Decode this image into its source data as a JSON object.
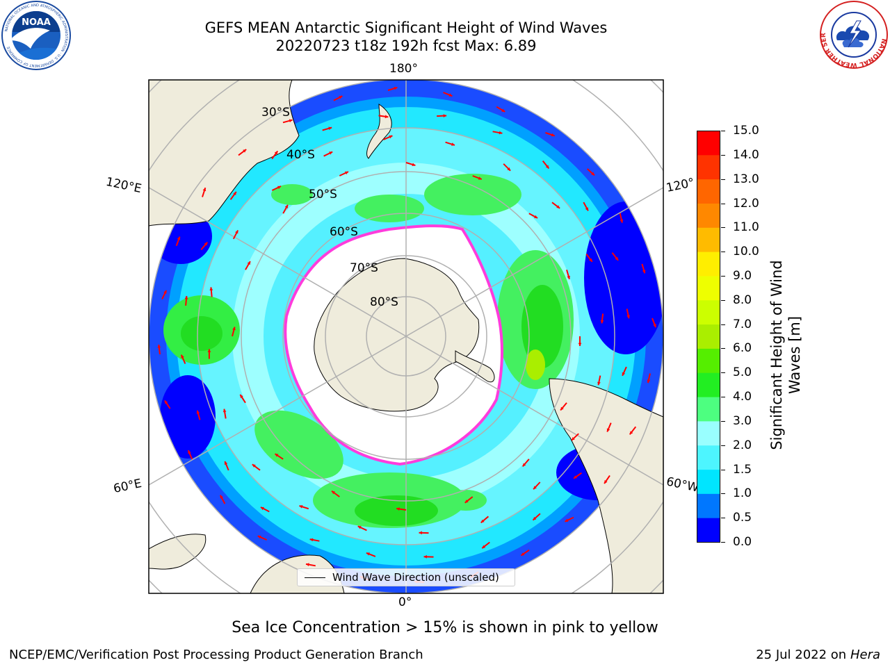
{
  "title": {
    "line1": "GEFS MEAN Antarctic Significant Height of Wind Waves",
    "line2": "20220723 t18z 192h fcst   Max: 6.89"
  },
  "map": {
    "projection": "south-polar-stereographic",
    "longitude_labels": {
      "top": "180°",
      "bottom": "0°",
      "left_upper": "120°E",
      "left_lower": "60°E",
      "right_upper": "120°",
      "right_lower": "60°W"
    },
    "latitude_labels": [
      "30°S",
      "40°S",
      "50°S",
      "60°S",
      "70°S",
      "80°S"
    ],
    "legend_label": "Wind Wave Direction (unscaled)",
    "colors": {
      "land": "#efecdc",
      "ice_edge": "#ff3cdc",
      "arrow": "#ff0000",
      "gridline": "#b0b0b0"
    }
  },
  "colorbar": {
    "label_line1": "Significant Height of Wind",
    "label_line2": "Waves [m]",
    "ticks": [
      "0.0",
      "0.5",
      "1.0",
      "1.5",
      "2.0",
      "3.0",
      "4.0",
      "5.0",
      "6.0",
      "7.0",
      "8.0",
      "9.0",
      "10.0",
      "11.0",
      "12.0",
      "13.0",
      "14.0",
      "15.0"
    ],
    "colors": [
      "#0000ff",
      "#0077ff",
      "#00e5ff",
      "#4df5ff",
      "#99ffff",
      "#4dff80",
      "#22ee22",
      "#55ee00",
      "#aaee00",
      "#ccff00",
      "#eeff00",
      "#ffee00",
      "#ffbb00",
      "#ff8800",
      "#ff6600",
      "#ff3300",
      "#ff0000"
    ]
  },
  "caption": "Sea Ice Concentration > 15% is shown in pink to yellow",
  "footer": {
    "left": "NCEP/EMC/Verification Post Processing Product Generation Branch",
    "right_prefix": "25 Jul 2022 on ",
    "right_italic": "Hera"
  },
  "logos": {
    "noaa_text": "NOAA",
    "noaa_ring": "NATIONAL OCEANIC AND ATMOSPHERIC ADMINISTRATION · U.S. DEPARTMENT OF COMMERCE",
    "nws_ring": "NATIONAL WEATHER SERVICE"
  }
}
